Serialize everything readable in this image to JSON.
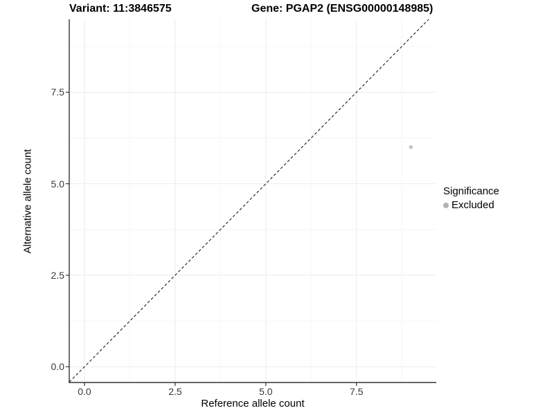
{
  "titles": {
    "variant": "Variant: 11:3846575",
    "gene": "Gene: PGAP2 (ENSG00000148985)"
  },
  "chart_data": {
    "type": "scatter",
    "title_left": "Variant: 11:3846575",
    "title_right": "Gene: PGAP2 (ENSG00000148985)",
    "xlabel": "Reference allele count",
    "ylabel": "Alternative allele count",
    "x_ticks": [
      0.0,
      2.5,
      5.0,
      7.5
    ],
    "x_tick_labels": [
      "0.0",
      "2.5",
      "5.0",
      "7.5"
    ],
    "y_ticks": [
      0.0,
      2.5,
      5.0,
      7.5
    ],
    "y_tick_labels": [
      "0.0",
      "2.5",
      "5.0",
      "7.5"
    ],
    "minor_ticks_x": [
      1.25,
      3.75,
      6.25,
      8.75
    ],
    "minor_ticks_y": [
      1.25,
      3.75,
      6.25,
      8.75
    ],
    "xlim": [
      -0.42,
      9.7
    ],
    "ylim": [
      -0.43,
      9.49
    ],
    "grid": "major and minor gridlines, light gray on white",
    "points": [
      {
        "x": 9,
        "y": 6,
        "series": "Excluded"
      }
    ],
    "reference_line": {
      "kind": "identity y = x",
      "style": "dashed",
      "color": "#1a1a1a"
    },
    "legend": {
      "position": "right",
      "title": "Significance",
      "items": [
        {
          "label": "Excluded",
          "color": "#b3b3b3"
        }
      ]
    },
    "colors": {
      "point_excluded": "#c3c3c3",
      "axis_line": "#333333",
      "grid_major": "#ebebeb",
      "grid_minor": "#f6f6f6",
      "tick_mark": "#333333"
    }
  }
}
